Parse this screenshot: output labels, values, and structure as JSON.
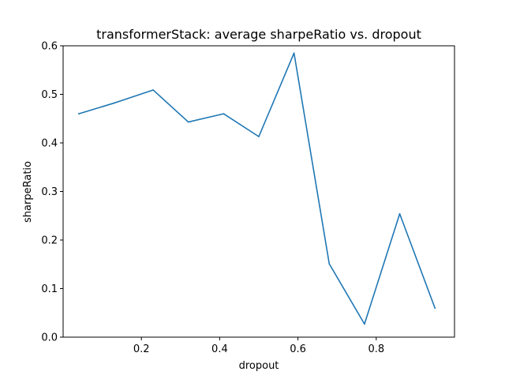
{
  "chart_data": {
    "type": "line",
    "title": "transformerStack: average sharpeRatio vs. dropout",
    "xlabel": "dropout",
    "ylabel": "sharpeRatio",
    "xlim": [
      0.0,
      1.0
    ],
    "ylim": [
      0.0,
      0.6
    ],
    "xticks": [
      0.2,
      0.4,
      0.6,
      0.8
    ],
    "xtick_labels": [
      "0.2",
      "0.4",
      "0.6",
      "0.8"
    ],
    "yticks": [
      0.0,
      0.1,
      0.2,
      0.3,
      0.4,
      0.5,
      0.6
    ],
    "ytick_labels": [
      "0.0",
      "0.1",
      "0.2",
      "0.3",
      "0.4",
      "0.5",
      "0.6"
    ],
    "grid": false,
    "legend": "none",
    "series": [
      {
        "color": "#1f77b4",
        "x": [
          0.04,
          0.13,
          0.23,
          0.32,
          0.41,
          0.5,
          0.59,
          0.68,
          0.77,
          0.86,
          0.95
        ],
        "y": [
          0.46,
          0.482,
          0.509,
          0.443,
          0.46,
          0.413,
          0.585,
          0.151,
          0.027,
          0.254,
          0.06
        ]
      }
    ]
  }
}
